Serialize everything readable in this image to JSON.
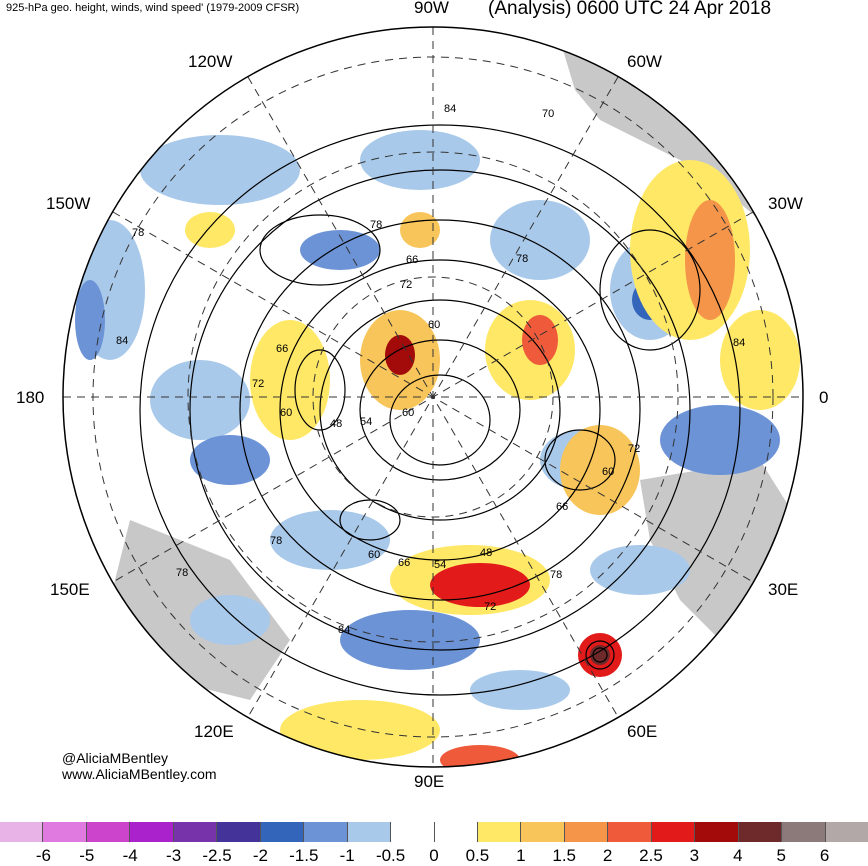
{
  "header": {
    "left_title": "925-hPa geo. height, winds, wind speed' (1979-2009 CFSR)",
    "right_title": "(Analysis) 0600 UTC 24 Apr 2018"
  },
  "longitude_labels": {
    "lon_90w": "90W",
    "lon_60w": "60W",
    "lon_120w": "120W",
    "lon_150w": "150W",
    "lon_30w": "30W",
    "lon_180": "180",
    "lon_0": "0",
    "lon_150e": "150E",
    "lon_30e": "30E",
    "lon_120e": "120E",
    "lon_60e": "60E",
    "lon_90e": "90E"
  },
  "contour_labels": [
    "84",
    "70",
    "78",
    "66",
    "72",
    "78",
    "84",
    "84",
    "66",
    "72",
    "60",
    "60",
    "48",
    "54",
    "60",
    "72",
    "60",
    "66",
    "78",
    "60",
    "66",
    "54",
    "48",
    "72",
    "78",
    "78",
    "78",
    "84"
  ],
  "credits": {
    "handle": "@AliciaMBentley",
    "website": "www.AliciaMBentley.com"
  },
  "colorbar": {
    "colors": [
      "#e8b4e8",
      "#e07ae0",
      "#cc44cc",
      "#aa22cc",
      "#7733aa",
      "#443399",
      "#3366bb",
      "#6b93d6",
      "#a9c9ea",
      "#ffffff",
      "#ffffff",
      "#ffe866",
      "#f8c55a",
      "#f4954a",
      "#ef5a3a",
      "#e21a1a",
      "#a30a0a",
      "#6e2a2a",
      "#8c7a7a",
      "#b3a8a8"
    ],
    "ticks": [
      "-6",
      "-5",
      "-4",
      "-3",
      "-2.5",
      "-2",
      "-1.5",
      "-1",
      "-0.5",
      "0",
      "0.5",
      "1",
      "1.5",
      "2",
      "2.5",
      "3",
      "4",
      "5",
      "6"
    ]
  },
  "map_colors": {
    "land": "#c8c8c8",
    "blue_light": "#a9c9ea",
    "blue_mid": "#6b93d6",
    "blue_dark": "#3366bb",
    "yellow": "#ffe866",
    "orange": "#f4954a",
    "red": "#e21a1a",
    "dark_red": "#a30a0a"
  }
}
